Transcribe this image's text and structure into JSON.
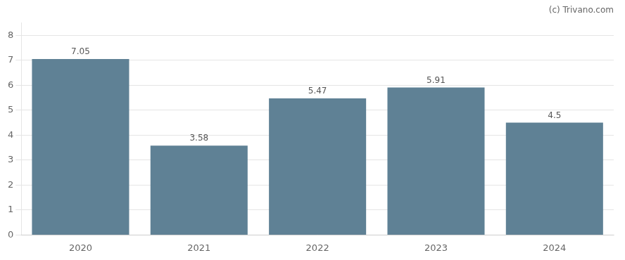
{
  "chart_data": {
    "type": "bar",
    "annotation": "(c) Trivano.com",
    "categories": [
      "2020",
      "2021",
      "2022",
      "2023",
      "2024"
    ],
    "values": [
      7.05,
      3.58,
      5.47,
      5.91,
      4.5
    ],
    "color": "#5f8195",
    "ylim": [
      0,
      8.5
    ],
    "yticks": [
      0,
      1,
      2,
      3,
      4,
      5,
      6,
      7,
      8
    ],
    "grid": true,
    "data_labels": true
  }
}
